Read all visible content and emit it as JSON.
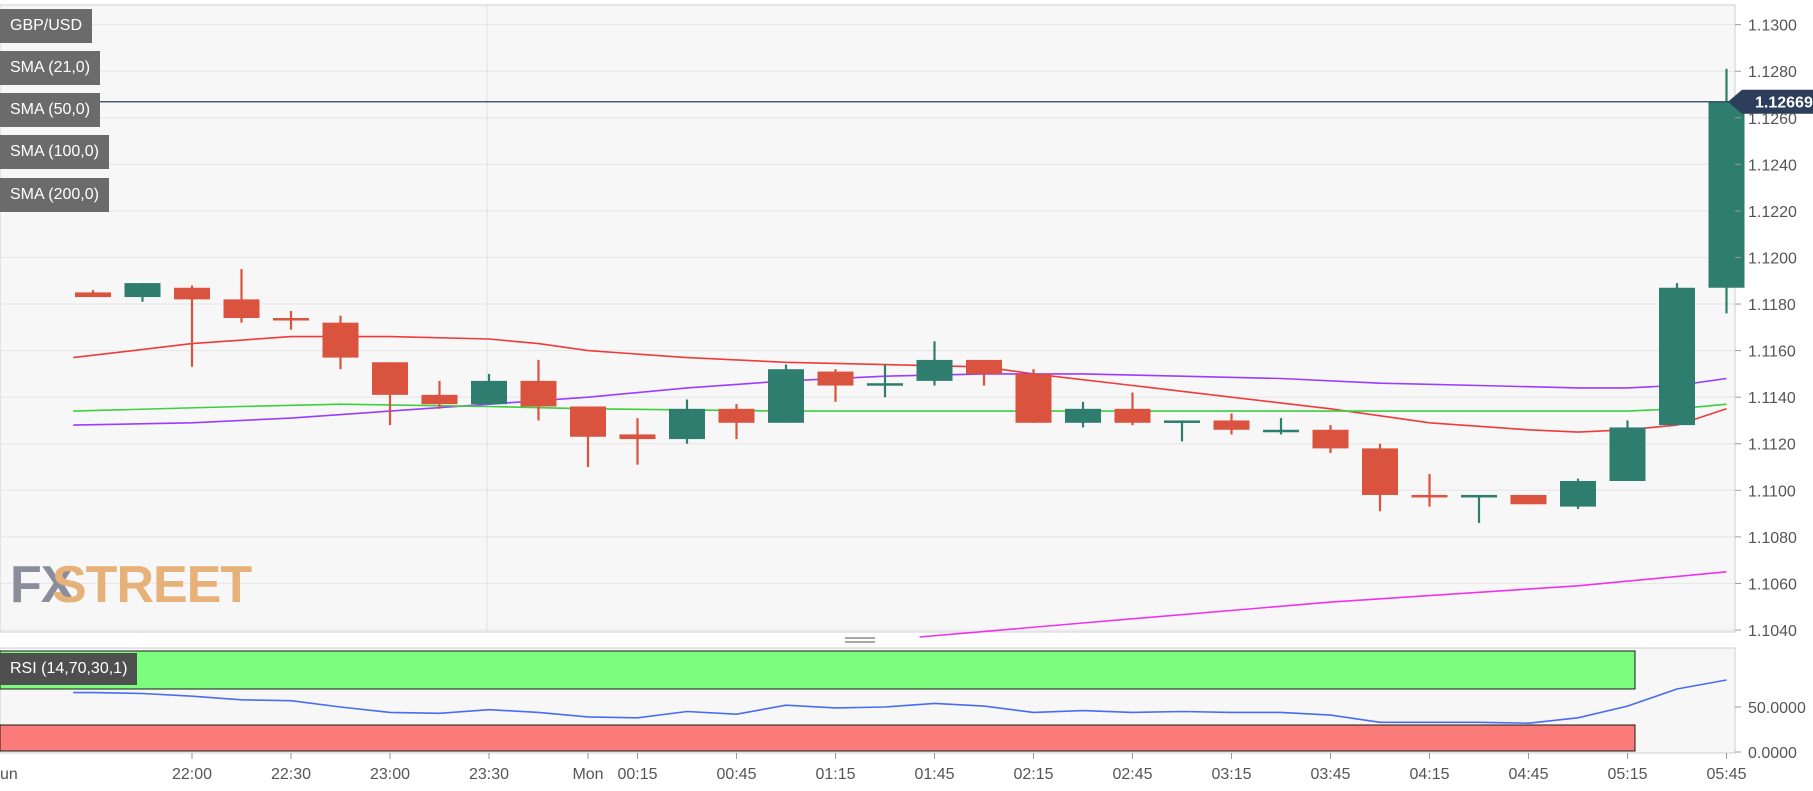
{
  "chart_data": [
    {
      "type": "candlestick",
      "title": "GBP/USD",
      "indicators": [
        "SMA (21,0)",
        "SMA (50,0)",
        "SMA (100,0)",
        "SMA (200,0)"
      ],
      "y_ticks": [
        "1.1300",
        "1.1280",
        "1.1260",
        "1.1240",
        "1.1220",
        "1.1200",
        "1.1180",
        "1.1160",
        "1.1140",
        "1.1120",
        "1.1100",
        "1.1080",
        "1.1060",
        "1.1040"
      ],
      "ylim": [
        1.1038,
        1.1302
      ],
      "x_ticks": [
        {
          "t": 2,
          "label": "22:00"
        },
        {
          "t": 4,
          "label": "22:30"
        },
        {
          "t": 6,
          "label": "23:00"
        },
        {
          "t": 8,
          "label": "23:30"
        },
        {
          "t": 10,
          "label": "Mon"
        },
        {
          "t": 11,
          "label": "00:15"
        },
        {
          "t": 13,
          "label": "00:45"
        },
        {
          "t": 15,
          "label": "01:15"
        },
        {
          "t": 17,
          "label": "01:45"
        },
        {
          "t": 19,
          "label": "02:15"
        },
        {
          "t": 21,
          "label": "02:45"
        },
        {
          "t": 23,
          "label": "03:15"
        },
        {
          "t": 25,
          "label": "03:45"
        },
        {
          "t": 27,
          "label": "04:15"
        },
        {
          "t": 29,
          "label": "04:45"
        },
        {
          "t": 31,
          "label": "05:15"
        },
        {
          "t": 33,
          "label": "05:45"
        }
      ],
      "left_edge_label": "un",
      "current_price": "1.12669",
      "current_price_value": 1.12669,
      "candles": [
        {
          "t": 0,
          "o": 1.1185,
          "h": 1.1186,
          "l": 1.1183,
          "c": 1.1183
        },
        {
          "t": 1,
          "o": 1.1183,
          "h": 1.1189,
          "l": 1.1181,
          "c": 1.1189
        },
        {
          "t": 2,
          "o": 1.1187,
          "h": 1.1188,
          "l": 1.1153,
          "c": 1.1182
        },
        {
          "t": 3,
          "o": 1.1182,
          "h": 1.1195,
          "l": 1.1172,
          "c": 1.1174
        },
        {
          "t": 4,
          "o": 1.1174,
          "h": 1.1177,
          "l": 1.1169,
          "c": 1.1173
        },
        {
          "t": 5,
          "o": 1.1172,
          "h": 1.1175,
          "l": 1.1152,
          "c": 1.1157
        },
        {
          "t": 6,
          "o": 1.1155,
          "h": 1.1155,
          "l": 1.1128,
          "c": 1.1141
        },
        {
          "t": 7,
          "o": 1.1141,
          "h": 1.1147,
          "l": 1.1135,
          "c": 1.1137
        },
        {
          "t": 8,
          "o": 1.1137,
          "h": 1.115,
          "l": 1.1137,
          "c": 1.1147
        },
        {
          "t": 9,
          "o": 1.1147,
          "h": 1.1156,
          "l": 1.113,
          "c": 1.1136
        },
        {
          "t": 10,
          "o": 1.1136,
          "h": 1.1136,
          "l": 1.111,
          "c": 1.1123
        },
        {
          "t": 11,
          "o": 1.1124,
          "h": 1.1131,
          "l": 1.1111,
          "c": 1.1122
        },
        {
          "t": 12,
          "o": 1.1122,
          "h": 1.1139,
          "l": 1.112,
          "c": 1.1135
        },
        {
          "t": 13,
          "o": 1.1135,
          "h": 1.1137,
          "l": 1.1122,
          "c": 1.1129
        },
        {
          "t": 14,
          "o": 1.1129,
          "h": 1.1154,
          "l": 1.1129,
          "c": 1.1152
        },
        {
          "t": 15,
          "o": 1.1151,
          "h": 1.1152,
          "l": 1.1138,
          "c": 1.1145
        },
        {
          "t": 16,
          "o": 1.1145,
          "h": 1.1154,
          "l": 1.114,
          "c": 1.1146
        },
        {
          "t": 17,
          "o": 1.1147,
          "h": 1.1164,
          "l": 1.1145,
          "c": 1.1156
        },
        {
          "t": 18,
          "o": 1.1156,
          "h": 1.1156,
          "l": 1.1145,
          "c": 1.115
        },
        {
          "t": 19,
          "o": 1.115,
          "h": 1.1152,
          "l": 1.1129,
          "c": 1.1129
        },
        {
          "t": 20,
          "o": 1.1129,
          "h": 1.1138,
          "l": 1.1127,
          "c": 1.1135
        },
        {
          "t": 21,
          "o": 1.1135,
          "h": 1.1142,
          "l": 1.1128,
          "c": 1.1129
        },
        {
          "t": 22,
          "o": 1.1129,
          "h": 1.113,
          "l": 1.1121,
          "c": 1.113
        },
        {
          "t": 23,
          "o": 1.113,
          "h": 1.1133,
          "l": 1.1124,
          "c": 1.1126
        },
        {
          "t": 24,
          "o": 1.1126,
          "h": 1.1131,
          "l": 1.1124,
          "c": 1.1126
        },
        {
          "t": 25,
          "o": 1.1126,
          "h": 1.1128,
          "l": 1.1116,
          "c": 1.1118
        },
        {
          "t": 26,
          "o": 1.1118,
          "h": 1.112,
          "l": 1.1091,
          "c": 1.1098
        },
        {
          "t": 27,
          "o": 1.1098,
          "h": 1.1107,
          "l": 1.1093,
          "c": 1.1097
        },
        {
          "t": 28,
          "o": 1.1097,
          "h": 1.1098,
          "l": 1.1086,
          "c": 1.1098
        },
        {
          "t": 29,
          "o": 1.1098,
          "h": 1.1098,
          "l": 1.1094,
          "c": 1.1094
        },
        {
          "t": 30,
          "o": 1.1093,
          "h": 1.1105,
          "l": 1.1092,
          "c": 1.1104
        },
        {
          "t": 31,
          "o": 1.1104,
          "h": 1.113,
          "l": 1.1104,
          "c": 1.1127
        },
        {
          "t": 32,
          "o": 1.1128,
          "h": 1.1189,
          "l": 1.1128,
          "c": 1.1187
        },
        {
          "t": 33,
          "o": 1.1187,
          "h": 1.1281,
          "l": 1.1176,
          "c": 1.12669
        }
      ],
      "sma_lines": [
        {
          "name": "SMA (21,0)",
          "color": "#ef3b3b",
          "points": [
            [
              -0.4,
              1.1157
            ],
            [
              2,
              1.1163
            ],
            [
              4,
              1.1166
            ],
            [
              6,
              1.1166
            ],
            [
              8,
              1.1165
            ],
            [
              9,
              1.1163
            ],
            [
              10,
              1.116
            ],
            [
              12,
              1.1157
            ],
            [
              14,
              1.1155
            ],
            [
              16,
              1.1154
            ],
            [
              18,
              1.1153
            ],
            [
              19,
              1.115
            ],
            [
              21,
              1.1145
            ],
            [
              23,
              1.114
            ],
            [
              25,
              1.1135
            ],
            [
              27,
              1.1129
            ],
            [
              29,
              1.1126
            ],
            [
              30,
              1.1125
            ],
            [
              31,
              1.1126
            ],
            [
              32,
              1.1128
            ],
            [
              33,
              1.1135
            ]
          ]
        },
        {
          "name": "SMA (50,0)",
          "color": "#9b3dff",
          "points": [
            [
              -0.4,
              1.1128
            ],
            [
              2,
              1.1129
            ],
            [
              4,
              1.1131
            ],
            [
              6,
              1.1134
            ],
            [
              8,
              1.1137
            ],
            [
              10,
              1.114
            ],
            [
              12,
              1.1144
            ],
            [
              14,
              1.1147
            ],
            [
              16,
              1.1149
            ],
            [
              18,
              1.115
            ],
            [
              20,
              1.115
            ],
            [
              22,
              1.1149
            ],
            [
              24,
              1.1148
            ],
            [
              26,
              1.1146
            ],
            [
              28,
              1.1145
            ],
            [
              30,
              1.1144
            ],
            [
              31,
              1.1144
            ],
            [
              32,
              1.1145
            ],
            [
              33,
              1.1148
            ]
          ]
        },
        {
          "name": "SMA (100,0)",
          "color": "#3ecf3e",
          "points": [
            [
              -0.4,
              1.1134
            ],
            [
              3,
              1.1136
            ],
            [
              5,
              1.1137
            ],
            [
              8,
              1.1136
            ],
            [
              10,
              1.1135
            ],
            [
              14,
              1.1134
            ],
            [
              18,
              1.1134
            ],
            [
              22,
              1.1134
            ],
            [
              26,
              1.1134
            ],
            [
              30,
              1.1134
            ],
            [
              31,
              1.1134
            ],
            [
              32,
              1.1135
            ],
            [
              33,
              1.1137
            ]
          ]
        },
        {
          "name": "SMA (200,0)",
          "color": "#ee33ee",
          "points": [
            [
              16.7,
              1.1037
            ],
            [
              20,
              1.1043
            ],
            [
              25,
              1.1052
            ],
            [
              30,
              1.1059
            ],
            [
              33,
              1.1065
            ]
          ]
        }
      ]
    },
    {
      "type": "line",
      "title": "RSI (14,70,30,1)",
      "y_ticks": [
        "50.0000",
        "0.0000"
      ],
      "ylim": [
        0,
        100
      ],
      "overbought": 70,
      "oversold": 30,
      "series": [
        {
          "name": "RSI (14,70,30,1)",
          "color": "#4a6cf0",
          "t": [
            -0.4,
            0,
            1,
            2,
            3,
            4,
            5,
            6,
            7,
            8,
            9,
            10,
            11,
            12,
            13,
            14,
            15,
            16,
            17,
            18,
            19,
            20,
            21,
            22,
            23,
            24,
            25,
            26,
            27,
            28,
            29,
            30,
            31,
            32,
            33
          ],
          "values": [
            66,
            66,
            65,
            62,
            58,
            57,
            50,
            44,
            43,
            47,
            44,
            39,
            38,
            45,
            42,
            52,
            49,
            50,
            54,
            51,
            44,
            46,
            44,
            45,
            44,
            44,
            41,
            33,
            33,
            33,
            32,
            38,
            51,
            70,
            80
          ]
        }
      ]
    }
  ],
  "watermark": {
    "text_fx": "FX",
    "text_street": "STREET"
  },
  "colors": {
    "bull": "#2e7d6e",
    "bear": "#d9533f",
    "overbought_zone": "#7cfc7c",
    "oversold_zone": "#fb7a7a",
    "price_tag": "#2c3e5c"
  }
}
